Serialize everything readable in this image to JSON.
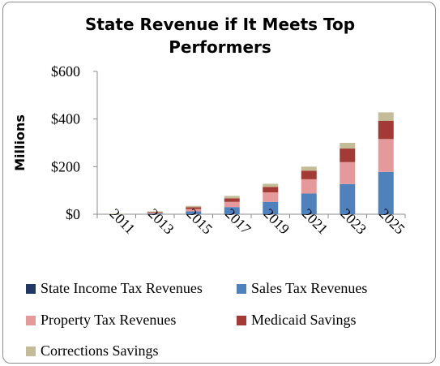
{
  "chart_data": {
    "type": "bar",
    "stacked": true,
    "title_line1": "State Revenue if It Meets Top",
    "title_line2": "Performers",
    "ylabel": "Millions",
    "xlabel": "",
    "ylim": [
      0,
      600
    ],
    "yticks": [
      "$0",
      "$200",
      "$400",
      "$600"
    ],
    "ytick_values": [
      0,
      200,
      400,
      600
    ],
    "grid": false,
    "legend_position": "bottom",
    "categories": [
      "2011",
      "2013",
      "2015",
      "2017",
      "2019",
      "2021",
      "2023",
      "2025"
    ],
    "series": [
      {
        "name": "State Income Tax Revenues",
        "color": "#1f3864",
        "values": [
          0,
          0,
          0,
          0,
          0,
          0,
          0,
          0
        ]
      },
      {
        "name": "Sales Tax Revenues",
        "color": "#4f81bd",
        "values": [
          0,
          3,
          12,
          30,
          52,
          87,
          127,
          178
        ]
      },
      {
        "name": "Property Tax Revenues",
        "color": "#e6999a",
        "values": [
          0,
          3,
          10,
          22,
          40,
          60,
          92,
          138
        ]
      },
      {
        "name": "Medicaid Savings",
        "color": "#a33a36",
        "values": [
          0,
          3,
          7,
          15,
          23,
          36,
          57,
          77
        ]
      },
      {
        "name": "Corrections Savings",
        "color": "#c4bc96",
        "values": [
          2,
          3,
          6,
          10,
          13,
          17,
          24,
          35
        ]
      }
    ]
  }
}
